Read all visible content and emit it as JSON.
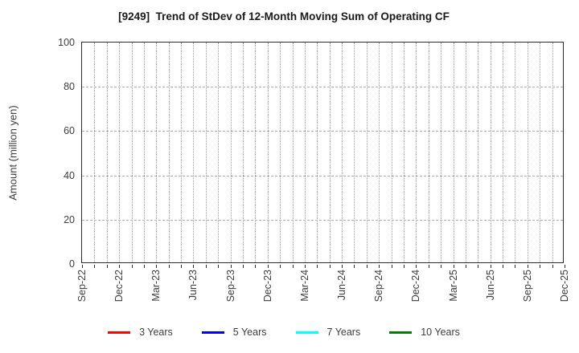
{
  "title": "[9249]  Trend of StDev of 12-Month Moving Sum of Operating CF",
  "chart_data": {
    "type": "line",
    "title": "[9249]  Trend of StDev of 12-Month Moving Sum of Operating CF",
    "xlabel": "",
    "ylabel": "Amount (million yen)",
    "ylim": [
      0,
      100
    ],
    "yticks": [
      0,
      20,
      40,
      60,
      80,
      100
    ],
    "x_ticklabels": [
      "Sep-22",
      "Dec-22",
      "Mar-23",
      "Jun-23",
      "Sep-23",
      "Dec-23",
      "Mar-24",
      "Jun-24",
      "Sep-24",
      "Dec-24",
      "Mar-25",
      "Jun-25",
      "Sep-25",
      "Dec-25"
    ],
    "months_per_labeled_tick": 3,
    "grid": true,
    "background": "#ffffff",
    "legend_position": "bottom",
    "series": [
      {
        "name": "3 Years",
        "color": "#ff0000",
        "values": []
      },
      {
        "name": "5 Years",
        "color": "#0000ff",
        "values": []
      },
      {
        "name": "7 Years",
        "color": "#00ffff",
        "values": []
      },
      {
        "name": "10 Years",
        "color": "#008000",
        "values": []
      }
    ]
  }
}
